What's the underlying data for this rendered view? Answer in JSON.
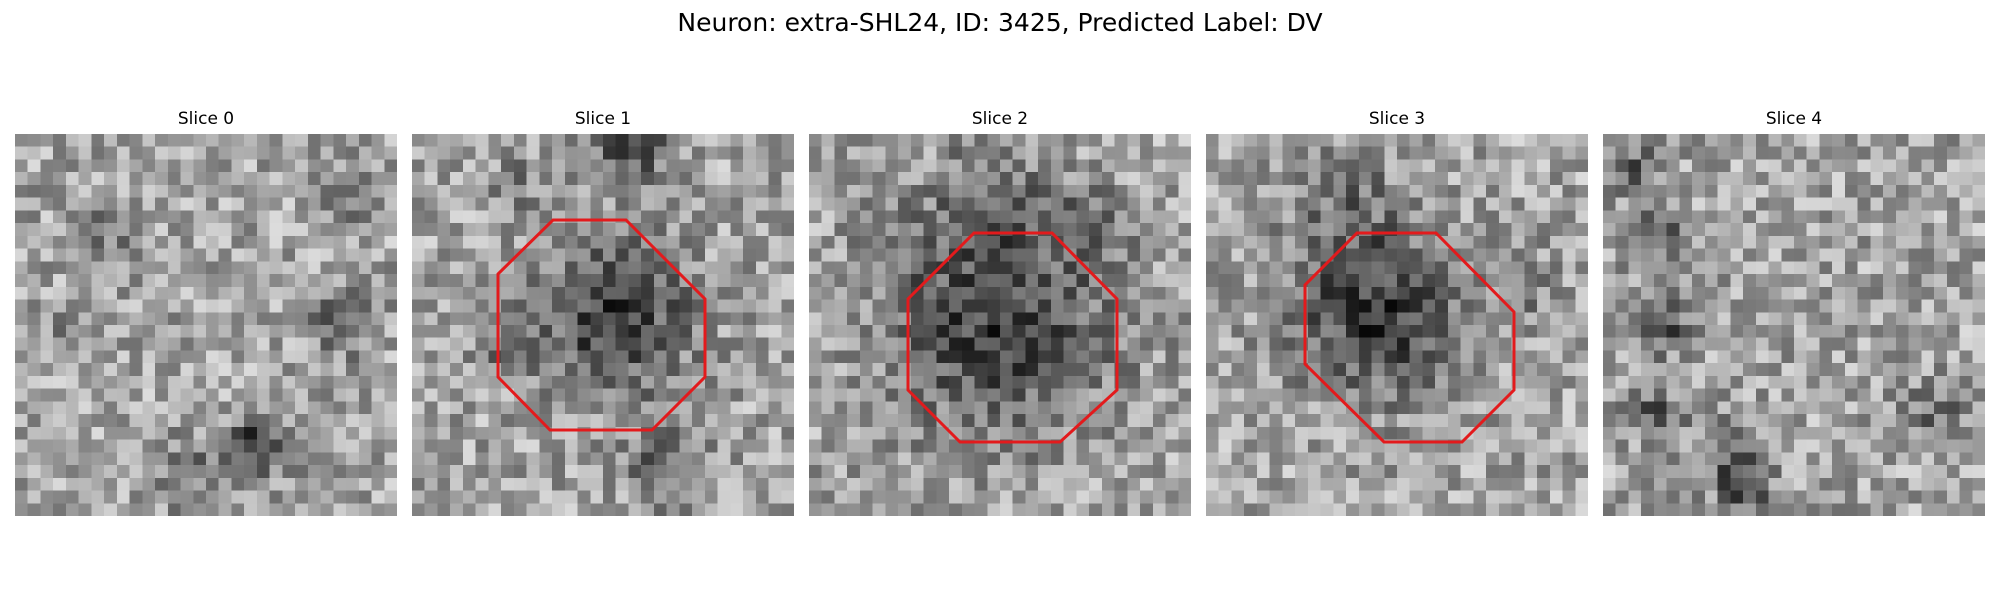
{
  "figure": {
    "title": "Neuron: extra-SHL24, ID: 3425, Predicted Label: DV",
    "outline_color": "#e31a1c"
  },
  "panels": [
    {
      "title": "Slice 0",
      "has_outline": false
    },
    {
      "title": "Slice 1",
      "has_outline": true
    },
    {
      "title": "Slice 2",
      "has_outline": true
    },
    {
      "title": "Slice 3",
      "has_outline": true
    },
    {
      "title": "Slice 4",
      "has_outline": false
    }
  ]
}
